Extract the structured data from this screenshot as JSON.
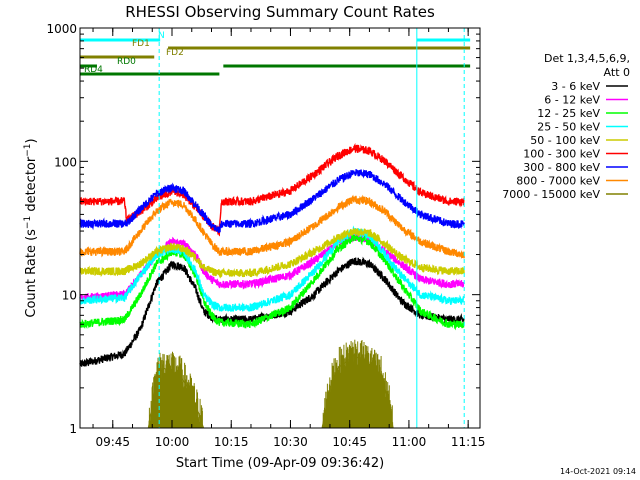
{
  "chart_data": {
    "type": "line",
    "title": "RHESSI Observing Summary Count Rates",
    "xlabel": "Start Time (09-Apr-09 09:36:42)",
    "ylabel": "Count Rate (s^-1 detector^-1)",
    "ylabel_parts": {
      "pre": "Count Rate (s",
      "sup1": "−1",
      "mid": " detector",
      "sup2": "−1",
      "post": ")"
    },
    "y_scale": "log",
    "ylim": [
      1,
      1000
    ],
    "y_ticks": [
      1,
      10,
      100,
      1000
    ],
    "y_tick_labels": [
      "1",
      "10",
      "100",
      "1000"
    ],
    "xlim_minutes_after": [
      "09:36:42",
      "11:18:00"
    ],
    "x_ticks": [
      "09:45",
      "10:00",
      "10:15",
      "10:30",
      "10:45",
      "11:00",
      "11:15"
    ],
    "legend_header": [
      "Det 1,3,4,5,6,9,",
      "Att 0"
    ],
    "legend_position": "right",
    "timestamp": "14-Oct-2021 09:14",
    "series": [
      {
        "name": "3 - 6 keV",
        "color": "#000000",
        "points": [
          [
            "09:36:42",
            3.0
          ],
          [
            "09:48:00",
            3.6
          ],
          [
            "09:52:00",
            5.5
          ],
          [
            "09:56:00",
            12
          ],
          [
            "10:00:00",
            17
          ],
          [
            "10:03:00",
            16
          ],
          [
            "10:06:00",
            11
          ],
          [
            "10:08:00",
            7.5
          ],
          [
            "10:10:00",
            6.8
          ],
          [
            "10:12:00",
            6.5
          ],
          [
            "10:20:00",
            6.5
          ],
          [
            "10:30:00",
            7.5
          ],
          [
            "10:36:00",
            10
          ],
          [
            "10:42:00",
            15
          ],
          [
            "10:46:00",
            18
          ],
          [
            "10:50:00",
            17
          ],
          [
            "10:54:00",
            13
          ],
          [
            "10:58:00",
            9
          ],
          [
            "11:03:00",
            7
          ],
          [
            "11:10:00",
            6.5
          ],
          [
            "11:14:00",
            6.5
          ]
        ]
      },
      {
        "name": "6 - 12 keV",
        "color": "#ff00ff",
        "points": [
          [
            "09:36:42",
            9.5
          ],
          [
            "09:48:00",
            10
          ],
          [
            "09:52:00",
            14
          ],
          [
            "09:56:00",
            20
          ],
          [
            "10:00:00",
            25
          ],
          [
            "10:03:00",
            24
          ],
          [
            "10:06:00",
            20
          ],
          [
            "10:08:00",
            15
          ],
          [
            "10:10:00",
            13
          ],
          [
            "10:12:00",
            12
          ],
          [
            "10:20:00",
            12
          ],
          [
            "10:30:00",
            14
          ],
          [
            "10:36:00",
            18
          ],
          [
            "10:42:00",
            24
          ],
          [
            "10:46:00",
            27
          ],
          [
            "10:50:00",
            26
          ],
          [
            "10:54:00",
            21
          ],
          [
            "10:58:00",
            17
          ],
          [
            "11:03:00",
            13
          ],
          [
            "11:10:00",
            12
          ],
          [
            "11:14:00",
            12
          ]
        ]
      },
      {
        "name": "12 - 25 keV",
        "color": "#00ff00",
        "points": [
          [
            "09:36:42",
            6.0
          ],
          [
            "09:48:00",
            6.5
          ],
          [
            "09:52:00",
            10
          ],
          [
            "09:56:00",
            17
          ],
          [
            "10:00:00",
            21
          ],
          [
            "10:03:00",
            20
          ],
          [
            "10:06:00",
            14
          ],
          [
            "10:08:00",
            9
          ],
          [
            "10:10:00",
            7
          ],
          [
            "10:12:00",
            6.2
          ],
          [
            "10:20:00",
            6.0
          ],
          [
            "10:30:00",
            8
          ],
          [
            "10:36:00",
            13
          ],
          [
            "10:42:00",
            22
          ],
          [
            "10:46:00",
            27
          ],
          [
            "10:50:00",
            25
          ],
          [
            "10:54:00",
            18
          ],
          [
            "10:58:00",
            12
          ],
          [
            "11:03:00",
            7.5
          ],
          [
            "11:10:00",
            6.0
          ],
          [
            "11:14:00",
            6.0
          ]
        ]
      },
      {
        "name": "25 - 50 keV",
        "color": "#00ffff",
        "points": [
          [
            "09:36:42",
            9.0
          ],
          [
            "09:48:00",
            9.5
          ],
          [
            "09:52:00",
            14
          ],
          [
            "09:56:00",
            20
          ],
          [
            "10:00:00",
            22
          ],
          [
            "10:03:00",
            21
          ],
          [
            "10:06:00",
            15
          ],
          [
            "10:08:00",
            10
          ],
          [
            "10:10:00",
            8.5
          ],
          [
            "10:12:00",
            8
          ],
          [
            "10:20:00",
            8
          ],
          [
            "10:30:00",
            10
          ],
          [
            "10:36:00",
            15
          ],
          [
            "10:42:00",
            25
          ],
          [
            "10:46:00",
            30
          ],
          [
            "10:50:00",
            28
          ],
          [
            "10:54:00",
            20
          ],
          [
            "10:58:00",
            14
          ],
          [
            "11:03:00",
            10
          ],
          [
            "11:10:00",
            9
          ],
          [
            "11:14:00",
            9
          ]
        ]
      },
      {
        "name": "50 - 100 keV",
        "color": "#cccc00",
        "points": [
          [
            "09:36:42",
            15
          ],
          [
            "09:48:00",
            15
          ],
          [
            "09:52:00",
            17
          ],
          [
            "09:56:00",
            21
          ],
          [
            "10:00:00",
            23
          ],
          [
            "10:03:00",
            22
          ],
          [
            "10:06:00",
            19
          ],
          [
            "10:08:00",
            16
          ],
          [
            "10:10:00",
            15
          ],
          [
            "10:12:00",
            14.5
          ],
          [
            "10:20:00",
            14.5
          ],
          [
            "10:30:00",
            17
          ],
          [
            "10:36:00",
            21
          ],
          [
            "10:42:00",
            27
          ],
          [
            "10:46:00",
            30
          ],
          [
            "10:50:00",
            29
          ],
          [
            "10:54:00",
            24
          ],
          [
            "10:58:00",
            19
          ],
          [
            "11:03:00",
            16
          ],
          [
            "11:10:00",
            15
          ],
          [
            "11:14:00",
            15
          ]
        ]
      },
      {
        "name": "100 - 300 keV",
        "color": "#ff0000",
        "points": [
          [
            "09:36:42",
            50
          ],
          [
            "09:48:00",
            50
          ],
          [
            "09:48:30",
            36
          ],
          [
            "09:52:00",
            42
          ],
          [
            "09:56:00",
            52
          ],
          [
            "10:00:00",
            60
          ],
          [
            "10:03:00",
            56
          ],
          [
            "10:06:00",
            45
          ],
          [
            "10:10:00",
            33
          ],
          [
            "10:12:00",
            30
          ],
          [
            "10:12:30",
            50
          ],
          [
            "10:20:00",
            50
          ],
          [
            "10:30:00",
            60
          ],
          [
            "10:36:00",
            80
          ],
          [
            "10:42:00",
            110
          ],
          [
            "10:46:00",
            125
          ],
          [
            "10:50:00",
            120
          ],
          [
            "10:54:00",
            100
          ],
          [
            "10:58:00",
            78
          ],
          [
            "11:03:00",
            58
          ],
          [
            "11:10:00",
            50
          ],
          [
            "11:14:00",
            50
          ]
        ]
      },
      {
        "name": "300 - 800 keV",
        "color": "#0000ff",
        "points": [
          [
            "09:36:42",
            34
          ],
          [
            "09:48:00",
            34
          ],
          [
            "09:48:30",
            34
          ],
          [
            "09:52:00",
            44
          ],
          [
            "09:56:00",
            57
          ],
          [
            "10:00:00",
            64
          ],
          [
            "10:03:00",
            60
          ],
          [
            "10:06:00",
            47
          ],
          [
            "10:10:00",
            33
          ],
          [
            "10:12:00",
            30
          ],
          [
            "10:12:30",
            34
          ],
          [
            "10:20:00",
            34
          ],
          [
            "10:30:00",
            40
          ],
          [
            "10:36:00",
            53
          ],
          [
            "10:42:00",
            72
          ],
          [
            "10:46:00",
            82
          ],
          [
            "10:50:00",
            80
          ],
          [
            "10:54:00",
            67
          ],
          [
            "10:58:00",
            52
          ],
          [
            "11:03:00",
            40
          ],
          [
            "11:10:00",
            34
          ],
          [
            "11:14:00",
            34
          ]
        ]
      },
      {
        "name": "800 - 7000 keV",
        "color": "#ff8800",
        "points": [
          [
            "09:36:42",
            21
          ],
          [
            "09:48:00",
            21
          ],
          [
            "09:52:00",
            30
          ],
          [
            "09:56:00",
            42
          ],
          [
            "10:00:00",
            50
          ],
          [
            "10:03:00",
            47
          ],
          [
            "10:06:00",
            36
          ],
          [
            "10:10:00",
            24
          ],
          [
            "10:12:00",
            21
          ],
          [
            "10:20:00",
            21
          ],
          [
            "10:30:00",
            25
          ],
          [
            "10:36:00",
            33
          ],
          [
            "10:42:00",
            45
          ],
          [
            "10:46:00",
            52
          ],
          [
            "10:50:00",
            50
          ],
          [
            "10:54:00",
            42
          ],
          [
            "10:58:00",
            32
          ],
          [
            "11:03:00",
            25
          ],
          [
            "11:10:00",
            21
          ],
          [
            "11:14:00",
            20
          ]
        ]
      },
      {
        "name": "7000 - 15000 keV",
        "color": "#808000",
        "points": [
          [
            "09:36:42",
            1
          ],
          [
            "09:54:00",
            1
          ],
          [
            "09:55:00",
            1.5
          ],
          [
            "09:56:00",
            2.5
          ],
          [
            "09:58:00",
            2.8
          ],
          [
            "10:02:00",
            2.5
          ],
          [
            "10:04:00",
            2.0
          ],
          [
            "10:06:00",
            1.5
          ],
          [
            "10:08:00",
            1
          ],
          [
            "10:38:00",
            1
          ],
          [
            "10:40:00",
            2.0
          ],
          [
            "10:42:00",
            2.8
          ],
          [
            "10:46:00",
            3.5
          ],
          [
            "10:50:00",
            3.0
          ],
          [
            "10:53:00",
            2.5
          ],
          [
            "10:55:00",
            1.5
          ],
          [
            "10:56:00",
            1
          ],
          [
            "11:14:00",
            1
          ]
        ]
      }
    ],
    "bars": [
      {
        "label": "N",
        "color": "#00ffff",
        "segments": [
          [
            "09:36:42",
            "09:57:00"
          ],
          [
            "11:02:00",
            "11:15:30"
          ]
        ]
      },
      {
        "label": "FD1",
        "color": "#808000",
        "segments": [
          [
            "09:59:00",
            "11:15:30"
          ]
        ]
      },
      {
        "label": "FD2",
        "color": "#808000",
        "segments": [
          [
            "09:36:42",
            "09:55:30"
          ]
        ]
      },
      {
        "label": "RD0",
        "color": "#007700",
        "segments": [
          [
            "09:36:42",
            "09:41:00"
          ],
          [
            "10:13:00",
            "11:15:30"
          ]
        ]
      },
      {
        "label": "RD4",
        "color": "#007700",
        "segments": [
          [
            "09:36:42",
            "10:12:00"
          ]
        ]
      }
    ],
    "vlines": [
      {
        "t": "09:36:42",
        "style": "solid"
      },
      {
        "t": "09:56:45",
        "style": "dashed"
      },
      {
        "t": "11:02:00",
        "style": "solid"
      },
      {
        "t": "11:14:00",
        "style": "dashed"
      }
    ]
  }
}
